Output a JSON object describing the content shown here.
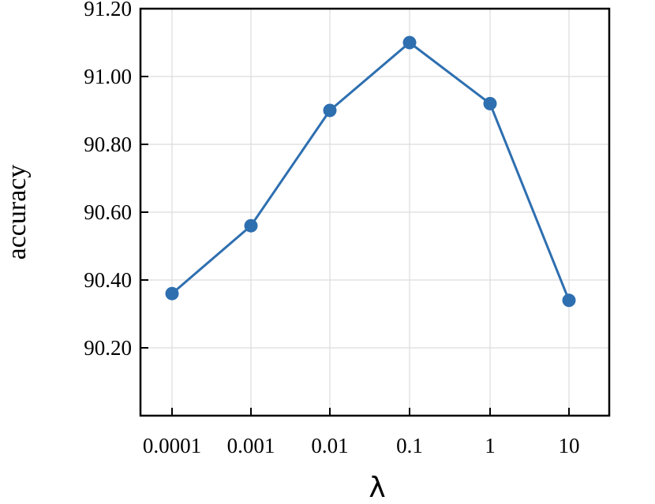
{
  "chart_data": {
    "type": "line",
    "title": "",
    "xlabel": "λ",
    "ylabel": "accuracy",
    "x_scale": "log",
    "x": [
      "0.0001",
      "0.001",
      "0.01",
      "0.1",
      "1",
      "10"
    ],
    "x_numeric": [
      0.0001,
      0.001,
      0.01,
      0.1,
      1,
      10
    ],
    "y_ticks": [
      "90.20",
      "90.40",
      "90.60",
      "90.80",
      "91.00",
      "91.20"
    ],
    "y_tick_values": [
      90.2,
      90.4,
      90.6,
      90.8,
      91.0,
      91.2
    ],
    "ylim": [
      90.0,
      91.2
    ],
    "grid": true,
    "series": [
      {
        "values": [
          90.36,
          90.56,
          90.9,
          91.1,
          90.92,
          90.34
        ],
        "color": "#2e6fb0",
        "marker": "circle"
      }
    ]
  }
}
